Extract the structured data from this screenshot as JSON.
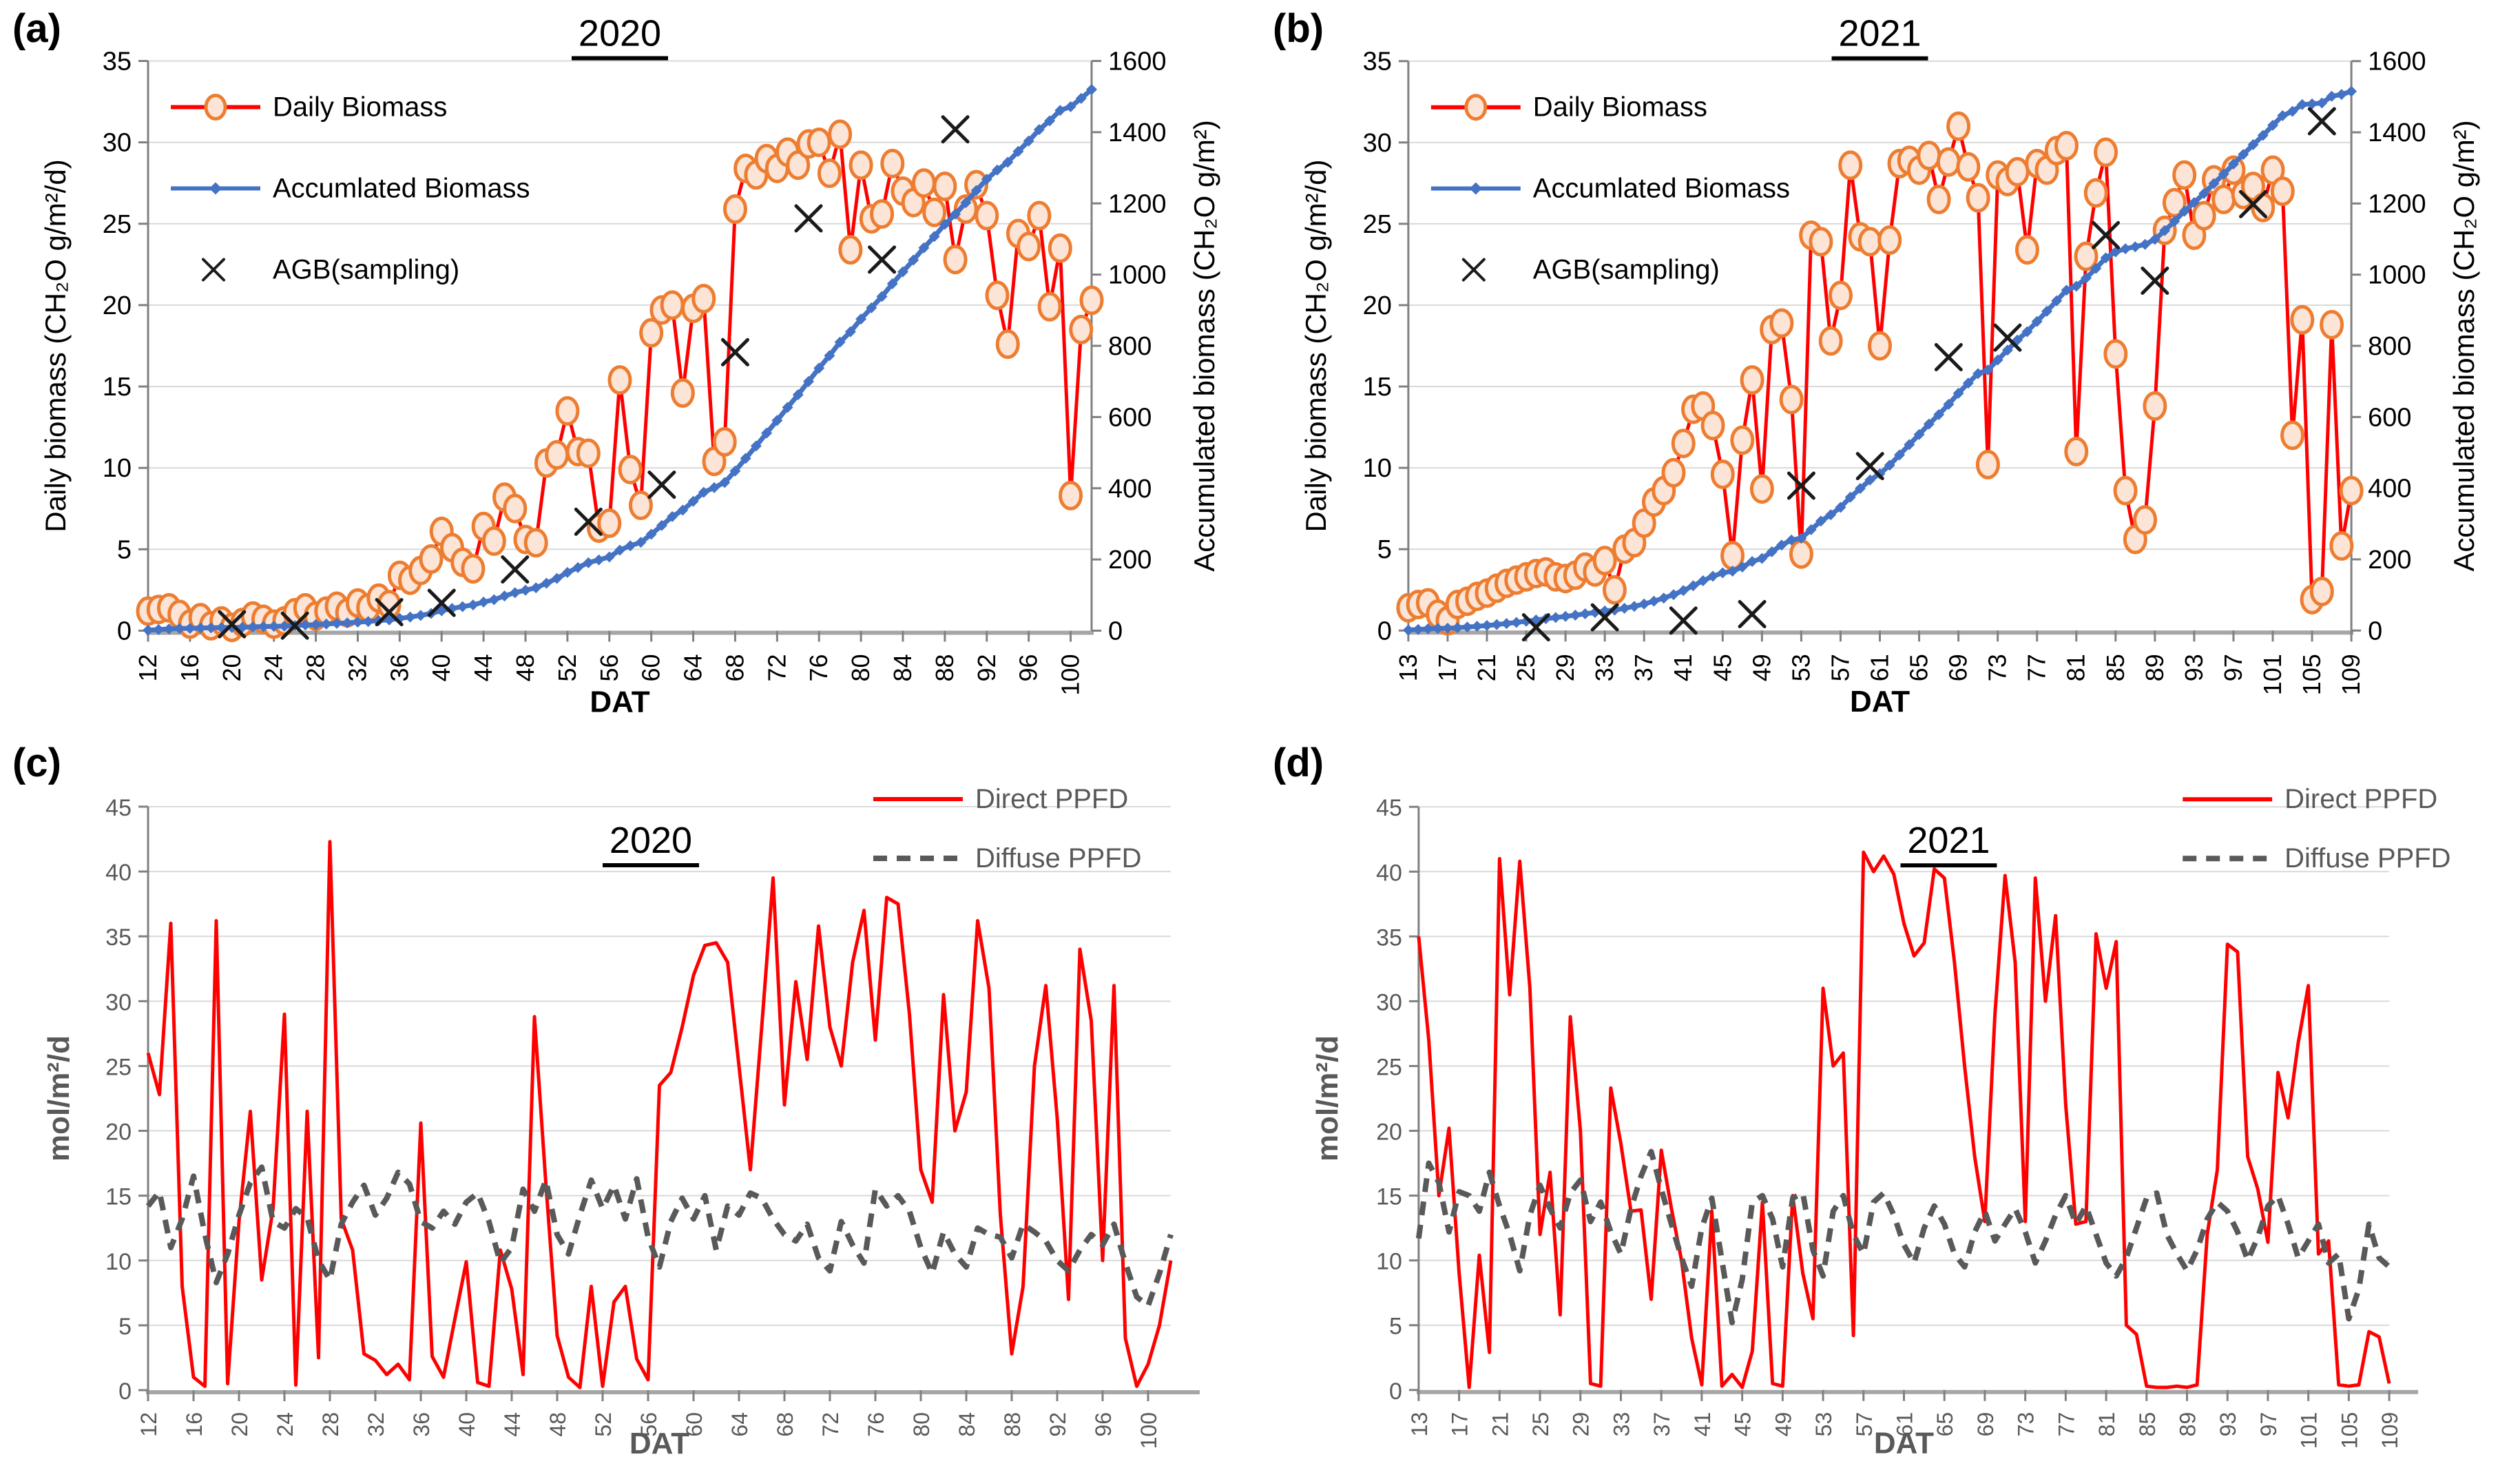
{
  "style": {
    "background": "#FFFFFF",
    "grid_color": "#D9D9D9",
    "axis_color": "#808080",
    "axis_strong": "#A6A6A6",
    "daily_color": "#FF0000",
    "daily_marker_fill": "#FCE4D6",
    "daily_marker_stroke": "#ED7D31",
    "accumulated_color": "#4472C4",
    "agb_color": "#1A1A1A",
    "direct_color": "#FF0000",
    "diffuse_color": "#595959"
  },
  "chart_data": [
    {
      "panel_label": "(a)",
      "title": "2020",
      "type": "line",
      "x_label": "DAT",
      "x_range": [
        12,
        102
      ],
      "x_tick_step": 4,
      "text_color": "#000000",
      "axis_title_bold": false,
      "left_axis": {
        "label": "Daily biomass (CH₂O g/m²/d)",
        "min": 0,
        "max": 35,
        "tick_step": 5
      },
      "right_axis": {
        "label": "Accumulated biomass (CH₂O g/m²)",
        "min": 0,
        "max": 1600,
        "tick_step": 200
      },
      "legend_position": "top-left",
      "series": [
        {
          "name": "Daily Biomass",
          "axis": "left",
          "color": "#FF0000",
          "width": 5,
          "marker": "circle",
          "marker_fill": "#FCE4D6",
          "marker_stroke": "#ED7D31",
          "values": [
            1.2,
            1.3,
            1.4,
            1.0,
            0.4,
            0.8,
            0.3,
            0.6,
            0.2,
            0.5,
            0.9,
            0.7,
            0.4,
            0.6,
            1.1,
            1.4,
            0.9,
            1.2,
            1.5,
            1.1,
            1.7,
            1.4,
            2.0,
            1.6,
            3.4,
            3.1,
            3.7,
            4.4,
            6.1,
            5.1,
            4.2,
            3.8,
            6.4,
            5.5,
            8.2,
            7.5,
            5.6,
            5.4,
            10.3,
            10.8,
            13.5,
            11.0,
            10.9,
            6.3,
            6.6,
            15.4,
            9.9,
            7.7,
            18.3,
            19.7,
            20.0,
            14.6,
            19.8,
            20.4,
            10.4,
            11.6,
            25.9,
            28.4,
            28.0,
            29.0,
            28.4,
            29.4,
            28.6,
            29.9,
            30.0,
            28.1,
            30.5,
            23.4,
            28.6,
            25.3,
            25.6,
            28.7,
            27.0,
            26.3,
            27.5,
            25.7,
            27.3,
            22.8,
            25.9,
            27.4,
            25.5,
            20.6,
            17.6,
            24.4,
            23.6,
            25.5,
            19.9,
            23.5,
            8.3,
            18.5,
            20.3
          ]
        },
        {
          "name": "Accumlated Biomass",
          "axis": "right",
          "color": "#4472C4",
          "width": 7,
          "marker": "diamond",
          "accumulate_from": 0,
          "end_value": 1520
        },
        {
          "name": "AGB(sampling)",
          "type": "scatter_x",
          "axis": "right",
          "color": "#1A1A1A",
          "points": [
            [
              20,
              18
            ],
            [
              26,
              14
            ],
            [
              35,
              52
            ],
            [
              40,
              78
            ],
            [
              47,
              172
            ],
            [
              54,
              306
            ],
            [
              61,
              410
            ],
            [
              68,
              782
            ],
            [
              75,
              1158
            ],
            [
              82,
              1042
            ],
            [
              89,
              1408
            ]
          ]
        }
      ]
    },
    {
      "panel_label": "(b)",
      "title": "2021",
      "type": "line",
      "x_label": "DAT",
      "x_range": [
        13,
        109
      ],
      "x_tick_step": 4,
      "text_color": "#000000",
      "axis_title_bold": false,
      "left_axis": {
        "label": "Daily biomass (CH₂O g/m²/d)",
        "min": 0,
        "max": 35,
        "tick_step": 5
      },
      "right_axis": {
        "label": "Accumulated biomass (CH₂O g/m²)",
        "min": 0,
        "max": 1600,
        "tick_step": 200
      },
      "legend_position": "top-left",
      "series": [
        {
          "name": "Daily Biomass",
          "axis": "left",
          "color": "#FF0000",
          "width": 5,
          "marker": "circle",
          "marker_fill": "#FCE4D6",
          "marker_stroke": "#ED7D31",
          "values": [
            1.4,
            1.6,
            1.7,
            1.0,
            0.6,
            1.6,
            1.8,
            2.1,
            2.3,
            2.6,
            2.9,
            3.1,
            3.3,
            3.5,
            3.6,
            3.3,
            3.2,
            3.4,
            3.9,
            3.6,
            4.3,
            2.5,
            5.0,
            5.4,
            6.6,
            7.9,
            8.6,
            9.7,
            11.5,
            13.6,
            13.8,
            12.6,
            9.6,
            4.6,
            11.7,
            15.4,
            8.7,
            18.5,
            18.9,
            14.2,
            4.7,
            24.3,
            23.9,
            17.8,
            20.6,
            28.6,
            24.2,
            23.9,
            17.5,
            24.0,
            28.7,
            28.9,
            28.3,
            29.2,
            26.5,
            28.8,
            31.0,
            28.5,
            26.6,
            10.2,
            28.0,
            27.6,
            28.2,
            23.4,
            28.7,
            28.3,
            29.5,
            29.8,
            11.0,
            23.0,
            26.9,
            29.4,
            17.0,
            8.6,
            5.6,
            6.8,
            13.8,
            24.6,
            26.3,
            28.0,
            24.3,
            25.5,
            27.7,
            26.5,
            28.3,
            26.8,
            27.3,
            26.0,
            28.3,
            27.0,
            12.0,
            19.1,
            1.9,
            2.4,
            18.8,
            5.2,
            8.6
          ]
        },
        {
          "name": "Accumlated Biomass",
          "axis": "right",
          "color": "#4472C4",
          "width": 7,
          "marker": "diamond",
          "accumulate_from": 0,
          "end_value": 1515
        },
        {
          "name": "AGB(sampling)",
          "type": "scatter_x",
          "axis": "right",
          "color": "#1A1A1A",
          "points": [
            [
              26,
              9
            ],
            [
              33,
              37
            ],
            [
              41,
              28
            ],
            [
              48,
              46
            ],
            [
              53,
              407
            ],
            [
              60,
              462
            ],
            [
              68,
              768
            ],
            [
              74,
              823
            ],
            [
              84,
              1111
            ],
            [
              89,
              983
            ],
            [
              99,
              1198
            ],
            [
              106,
              1431
            ]
          ]
        }
      ]
    },
    {
      "panel_label": "(c)",
      "title": "2020",
      "type": "line",
      "x_label": "DAT",
      "x_range": [
        12,
        102
      ],
      "x_tick_step": 4,
      "text_color": "#595959",
      "axis_title_bold": true,
      "left_axis": {
        "label": "mol/m²/d",
        "min": 0,
        "max": 45,
        "tick_step": 5
      },
      "legend_position": "top-right",
      "series": [
        {
          "name": "Direct PPFD",
          "axis": "left",
          "color": "#FF0000",
          "width": 5,
          "values": [
            26.0,
            22.8,
            36.0,
            8.0,
            1.0,
            0.3,
            36.2,
            0.5,
            13.0,
            21.5,
            8.5,
            14.0,
            29.0,
            0.4,
            21.5,
            2.5,
            42.3,
            13.2,
            10.8,
            2.8,
            2.3,
            1.2,
            2.0,
            0.8,
            20.6,
            2.6,
            1.0,
            5.5,
            9.9,
            0.6,
            0.3,
            10.8,
            7.8,
            1.2,
            28.8,
            16.0,
            4.2,
            1.0,
            0.2,
            8.0,
            0.3,
            6.8,
            8.0,
            2.4,
            0.8,
            23.5,
            24.5,
            28.0,
            32.0,
            34.3,
            34.5,
            33.0,
            25.0,
            17.0,
            28.0,
            39.5,
            22.0,
            31.5,
            25.5,
            35.8,
            28.0,
            25.0,
            33.0,
            37.0,
            27.0,
            38.0,
            37.5,
            29.0,
            17.0,
            14.5,
            30.5,
            20.0,
            23.0,
            36.2,
            31.0,
            13.5,
            2.8,
            8.0,
            25.0,
            31.2,
            21.0,
            7.0,
            34.0,
            28.5,
            10.0,
            31.2,
            4.0,
            0.3,
            2.0,
            5.0,
            10.0
          ]
        },
        {
          "name": "Diffuse PPFD",
          "axis": "left",
          "color": "#595959",
          "width": 8,
          "dash": "20 14",
          "values": [
            14.2,
            15.3,
            11.0,
            13.2,
            16.5,
            12.0,
            8.3,
            10.5,
            13.5,
            16.0,
            17.2,
            13.0,
            12.5,
            14.0,
            13.3,
            10.0,
            8.5,
            12.8,
            14.5,
            15.8,
            13.5,
            14.8,
            16.8,
            15.9,
            13.0,
            12.5,
            13.8,
            12.8,
            14.5,
            15.2,
            13.0,
            9.8,
            11.0,
            15.5,
            13.8,
            16.2,
            12.0,
            10.5,
            13.5,
            16.2,
            14.0,
            15.8,
            13.2,
            16.3,
            11.8,
            9.5,
            13.0,
            14.8,
            13.2,
            15.0,
            10.8,
            14.2,
            13.5,
            15.2,
            14.8,
            13.2,
            12.0,
            11.5,
            12.8,
            10.2,
            9.2,
            13.0,
            11.2,
            9.8,
            15.5,
            14.2,
            15.0,
            13.8,
            11.0,
            9.0,
            12.2,
            10.5,
            9.5,
            12.5,
            12.0,
            11.8,
            10.2,
            12.8,
            12.2,
            11.5,
            10.0,
            9.2,
            10.8,
            12.0,
            11.2,
            12.8,
            9.8,
            7.2,
            6.5,
            9.0,
            12.0
          ]
        }
      ]
    },
    {
      "panel_label": "(d)",
      "title": "2021",
      "type": "line",
      "x_label": "DAT",
      "x_range": [
        13,
        109
      ],
      "x_tick_step": 4,
      "text_color": "#595959",
      "axis_title_bold": true,
      "left_axis": {
        "label": "mol/m²/d",
        "min": 0,
        "max": 45,
        "tick_step": 5
      },
      "legend_position": "top-right",
      "series": [
        {
          "name": "Direct PPFD",
          "axis": "left",
          "color": "#FF0000",
          "width": 5,
          "values": [
            35.0,
            27.0,
            15.0,
            20.2,
            9.0,
            0.2,
            10.4,
            2.9,
            41.0,
            30.5,
            40.8,
            31.0,
            12.0,
            16.8,
            5.8,
            28.8,
            20.0,
            0.5,
            0.3,
            23.3,
            19.0,
            13.8,
            13.9,
            7.0,
            18.5,
            14.0,
            10.0,
            4.0,
            0.4,
            13.8,
            0.3,
            1.2,
            0.2,
            3.0,
            14.5,
            0.5,
            0.3,
            15.0,
            9.0,
            5.5,
            31.0,
            25.0,
            26.0,
            4.2,
            41.5,
            40.0,
            41.2,
            39.8,
            36.0,
            33.5,
            34.5,
            40.2,
            39.5,
            33.0,
            25.0,
            18.0,
            13.0,
            29.0,
            39.7,
            33.0,
            13.0,
            39.5,
            30.0,
            36.6,
            22.0,
            12.8,
            13.0,
            35.2,
            31.0,
            34.6,
            5.0,
            4.3,
            0.3,
            0.2,
            0.2,
            0.3,
            0.2,
            0.4,
            12.0,
            17.0,
            34.4,
            33.8,
            18.0,
            15.5,
            11.4,
            24.5,
            21.0,
            26.8,
            31.2,
            10.5,
            11.5,
            0.4,
            0.3,
            0.4,
            4.5,
            4.1,
            0.5
          ]
        },
        {
          "name": "Diffuse PPFD",
          "axis": "left",
          "color": "#595959",
          "width": 8,
          "dash": "20 14",
          "values": [
            11.7,
            17.5,
            16.0,
            12.2,
            15.3,
            15.0,
            13.8,
            16.8,
            14.2,
            12.0,
            9.2,
            13.5,
            15.8,
            14.0,
            12.5,
            15.2,
            16.2,
            13.0,
            14.5,
            12.2,
            10.5,
            14.0,
            16.5,
            18.4,
            15.5,
            12.8,
            10.2,
            8.0,
            12.5,
            14.8,
            10.0,
            5.2,
            8.5,
            14.5,
            15.0,
            13.2,
            9.5,
            14.8,
            15.2,
            10.8,
            8.8,
            13.8,
            15.0,
            12.0,
            10.5,
            14.5,
            15.2,
            13.5,
            11.2,
            9.8,
            12.5,
            14.2,
            12.8,
            10.5,
            9.5,
            12.2,
            13.8,
            11.5,
            12.8,
            14.0,
            12.2,
            9.8,
            11.5,
            13.5,
            15.0,
            12.8,
            14.2,
            12.0,
            9.8,
            8.8,
            10.2,
            12.5,
            14.8,
            15.2,
            12.0,
            10.5,
            9.2,
            10.8,
            13.2,
            14.5,
            13.8,
            12.2,
            10.0,
            11.8,
            14.2,
            15.0,
            12.8,
            10.2,
            11.5,
            12.8,
            9.8,
            10.5,
            5.5,
            7.8,
            12.8,
            10.2,
            9.5
          ]
        }
      ]
    }
  ]
}
